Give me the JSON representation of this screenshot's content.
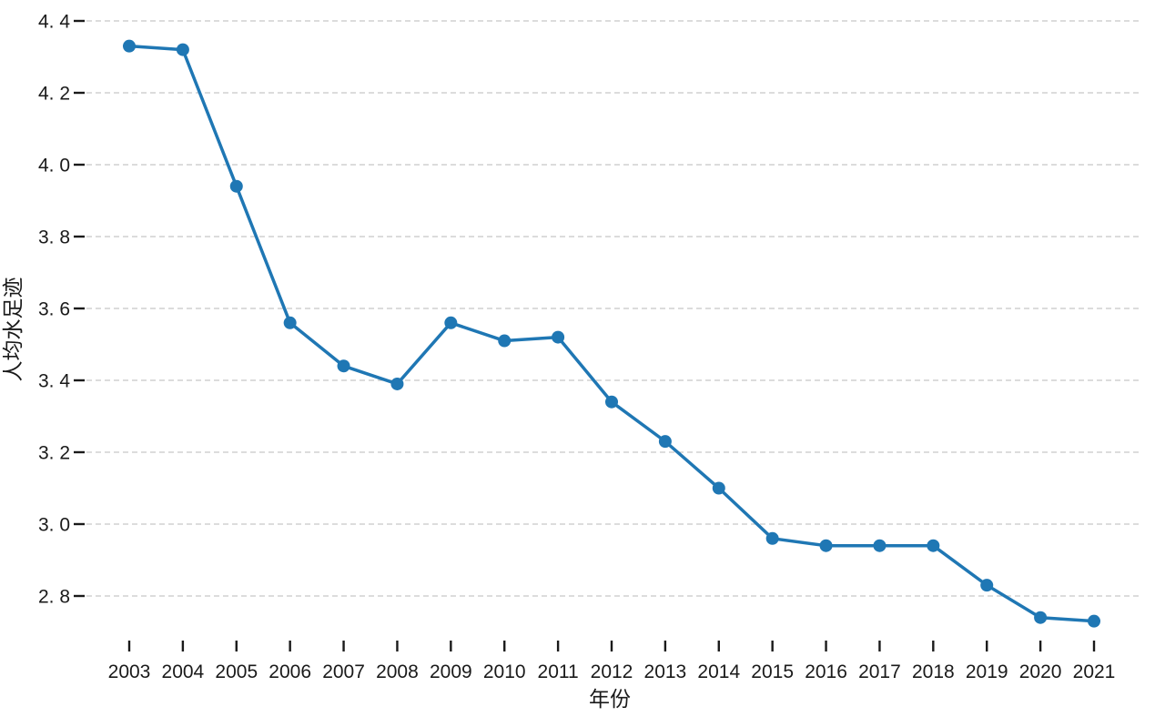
{
  "chart_data": {
    "type": "line",
    "title": "",
    "xlabel": "年份",
    "ylabel": "人均水足迹",
    "categories": [
      "2003",
      "2004",
      "2005",
      "2006",
      "2007",
      "2008",
      "2009",
      "2010",
      "2011",
      "2012",
      "2013",
      "2014",
      "2015",
      "2016",
      "2017",
      "2018",
      "2019",
      "2020",
      "2021"
    ],
    "series": [
      {
        "name": "人均水足迹",
        "values": [
          4.33,
          4.32,
          3.94,
          3.56,
          3.44,
          3.39,
          3.56,
          3.51,
          3.52,
          3.34,
          3.23,
          3.1,
          2.96,
          2.94,
          2.94,
          2.94,
          2.83,
          2.74,
          2.73
        ]
      }
    ],
    "ylim": [
      2.8,
      4.4
    ],
    "yticks": [
      2.8,
      3.0,
      3.2,
      3.4,
      3.6,
      3.8,
      4.0,
      4.2,
      4.4
    ],
    "ytick_labels": [
      "2. 8",
      "3. 0",
      "3. 2",
      "3. 4",
      "3. 6",
      "3. 8",
      "4. 0",
      "4. 2",
      "4. 4"
    ],
    "grid": "horizontal-dashed",
    "legend_position": "none",
    "marker": "circle",
    "colors": {
      "line": "#1f77b4",
      "marker": "#1f77b4",
      "gridline": "#c7c7c7",
      "tick": "#1a1a1a",
      "text": "#1a1a1a",
      "background": "#ffffff"
    }
  }
}
